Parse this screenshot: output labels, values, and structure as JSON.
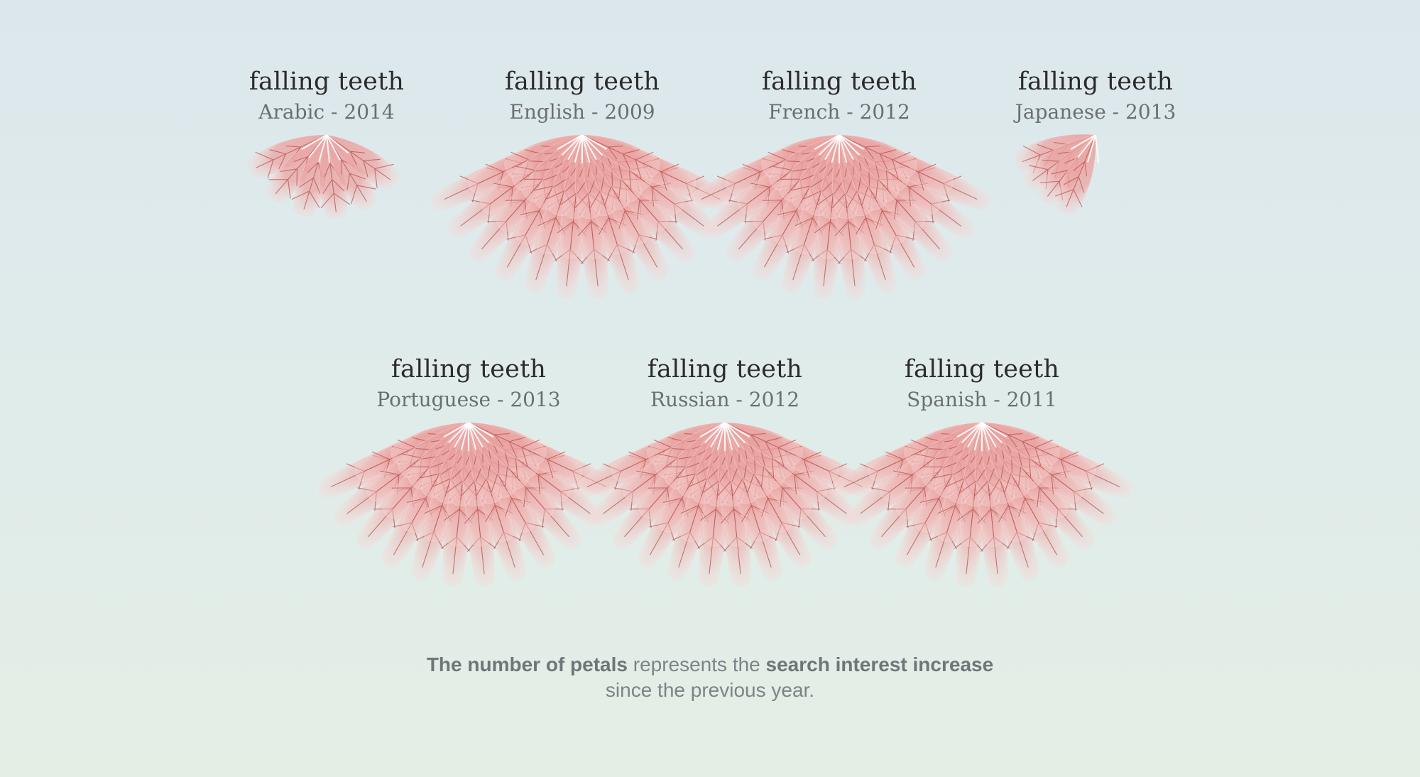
{
  "chart_data": {
    "type": "petal-glyph",
    "caption": {
      "bold_1": "The number of petals",
      "text_1": " represents the ",
      "bold_2": "search interest increase",
      "line_2": "since the previous year."
    },
    "flowers": [
      {
        "term": "falling teeth",
        "language": "Arabic",
        "year": "2014",
        "label": "Arabic - 2014",
        "petals": 6
      },
      {
        "term": "falling teeth",
        "language": "English",
        "year": "2009",
        "label": "English - 2009",
        "petals": 36
      },
      {
        "term": "falling teeth",
        "language": "French",
        "year": "2012",
        "label": "French - 2012",
        "petals": 36
      },
      {
        "term": "falling teeth",
        "language": "Japanese",
        "year": "2013",
        "label": "Japanese - 2013",
        "petals": 4
      },
      {
        "term": "falling teeth",
        "language": "Portuguese",
        "year": "2013",
        "label": "Portuguese - 2013",
        "petals": 36
      },
      {
        "term": "falling teeth",
        "language": "Russian",
        "year": "2012",
        "label": "Russian - 2012",
        "petals": 36
      },
      {
        "term": "falling teeth",
        "language": "Spanish",
        "year": "2011",
        "label": "Spanish - 2011",
        "petals": 36
      }
    ],
    "colors": {
      "petal_fill": "#eaa6a4",
      "petal_edge": "#f6d8d6",
      "vein": "#b8504f",
      "title": "#2b2b2b",
      "subtitle": "#6a6f72",
      "caption": "#7d8487"
    }
  }
}
